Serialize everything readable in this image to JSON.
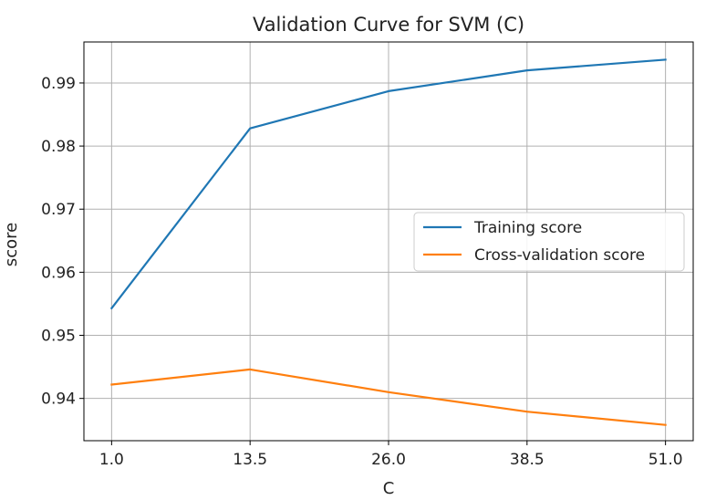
{
  "chart_data": {
    "type": "line",
    "title": "Validation Curve for SVM (C)",
    "xlabel": "C",
    "ylabel": "score",
    "x": [
      1.0,
      13.5,
      26.0,
      38.5,
      51.0
    ],
    "xticks": [
      "1.0",
      "13.5",
      "26.0",
      "38.5",
      "51.0"
    ],
    "yticks": [
      "0.94",
      "0.95",
      "0.96",
      "0.97",
      "0.98",
      "0.99"
    ],
    "xlim": [
      -1.5,
      53.5
    ],
    "ylim": [
      0.9333,
      0.9965
    ],
    "grid": true,
    "legend_position": "center-right",
    "series": [
      {
        "name": "Training score",
        "color": "#1f77b4",
        "values": [
          0.9543,
          0.9828,
          0.9887,
          0.992,
          0.9937
        ]
      },
      {
        "name": "Cross-validation score",
        "color": "#ff7f0e",
        "values": [
          0.9422,
          0.9446,
          0.941,
          0.9379,
          0.9358
        ]
      }
    ]
  }
}
